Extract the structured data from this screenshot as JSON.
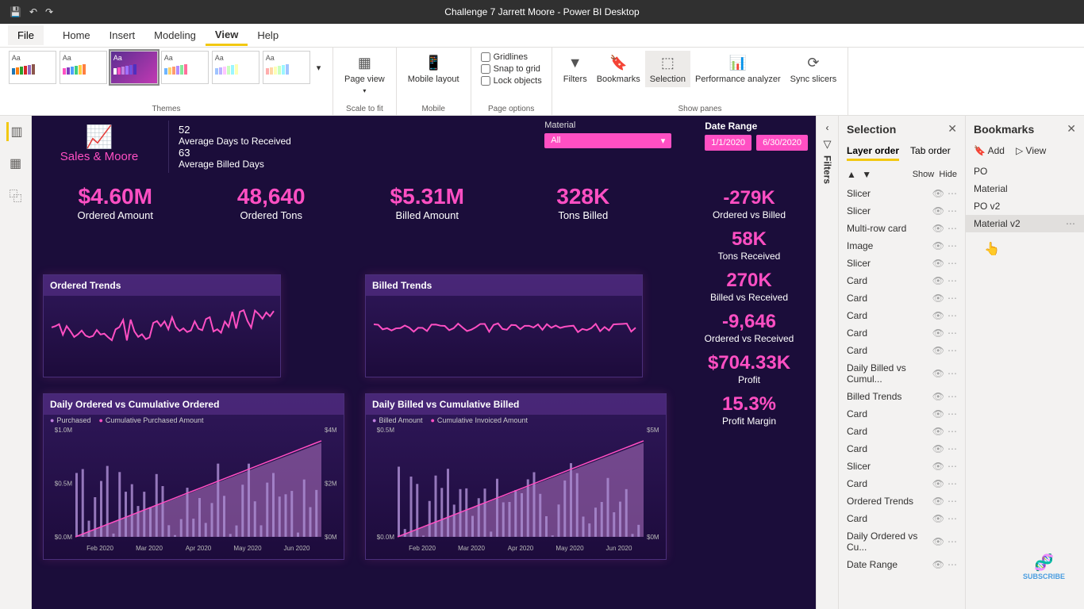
{
  "app": {
    "title": "Challenge 7 Jarrett Moore - Power BI Desktop"
  },
  "menu": {
    "file": "File",
    "tabs": [
      "Home",
      "Insert",
      "Modeling",
      "View",
      "Help"
    ],
    "active": "View"
  },
  "ribbon": {
    "themes_label": "Themes",
    "scale_label": "Scale to fit",
    "mobile_label": "Mobile",
    "page_options_label": "Page options",
    "show_panes_label": "Show panes",
    "page_view": "Page view",
    "mobile_layout": "Mobile layout",
    "gridlines": "Gridlines",
    "snap": "Snap to grid",
    "lock": "Lock objects",
    "filters": "Filters",
    "bookmarks": "Bookmarks",
    "selection": "Selection",
    "perf": "Performance analyzer",
    "sync": "Sync slicers",
    "theme_bar_colors": [
      [
        "#1f77b4",
        "#ff7f0e",
        "#2ca02c",
        "#d62728",
        "#9467bd",
        "#8c564b"
      ],
      [
        "#ff4fc3",
        "#7f3fbf",
        "#4f9fff",
        "#3fcf7f",
        "#ffcf3f",
        "#ff7f3f"
      ],
      [
        "#ffffff",
        "#ff4fc3",
        "#c080e0",
        "#9f6fff",
        "#6f4fdf",
        "#4f2fbf"
      ],
      [
        "#6eb5ff",
        "#ffd36e",
        "#ff9b6e",
        "#b28dff",
        "#85e89d",
        "#ff6e9b"
      ],
      [
        "#a0c4ff",
        "#bdb2ff",
        "#ffc6ff",
        "#caffbf",
        "#9bf6ff",
        "#fdffb6"
      ],
      [
        "#ffadad",
        "#ffd6a5",
        "#fdffb6",
        "#caffbf",
        "#9bf6ff",
        "#a0c4ff"
      ]
    ]
  },
  "filters_pane": {
    "label": "Filters"
  },
  "selection_pane": {
    "title": "Selection",
    "layer_order": "Layer order",
    "tab_order": "Tab order",
    "show": "Show",
    "hide": "Hide",
    "items": [
      "Slicer",
      "Slicer",
      "Multi-row card",
      "Image",
      "Slicer",
      "Card",
      "Card",
      "Card",
      "Card",
      "Card",
      "Daily Billed vs Cumul...",
      "Billed Trends",
      "Card",
      "Card",
      "Card",
      "Slicer",
      "Card",
      "Ordered Trends",
      "Card",
      "Daily Ordered vs Cu...",
      "Date Range"
    ]
  },
  "bookmarks_pane": {
    "title": "Bookmarks",
    "add": "Add",
    "view": "View",
    "items": [
      "PO",
      "Material",
      "PO v2",
      "Material v2"
    ],
    "hover_index": 3
  },
  "dashboard": {
    "brand": "Sales & Moore",
    "stat1_value": "52",
    "stat1_label": "Average Days to Received",
    "stat2_value": "63",
    "stat2_label": "Average Billed Days",
    "material_label": "Material",
    "material_value": "All",
    "date_label": "Date Range",
    "date_from": "1/1/2020",
    "date_to": "6/30/2020",
    "kpis_row": [
      {
        "v": "$4.60M",
        "l": "Ordered Amount"
      },
      {
        "v": "48,640",
        "l": "Ordered Tons"
      },
      {
        "v": "$5.31M",
        "l": "Billed Amount"
      },
      {
        "v": "328K",
        "l": "Tons Billed"
      }
    ],
    "kpis_right": [
      {
        "v": "-279K",
        "l": "Ordered vs Billed"
      },
      {
        "v": "58K",
        "l": "Tons Received"
      },
      {
        "v": "270K",
        "l": "Billed vs Received"
      },
      {
        "v": "-9,646",
        "l": "Ordered vs Received"
      },
      {
        "v": "$704.33K",
        "l": "Profit"
      },
      {
        "v": "15.3%",
        "l": "Profit Margin"
      }
    ],
    "charts": {
      "ordered_trends": {
        "title": "Ordered Trends",
        "line_color": "#ff4fc3"
      },
      "billed_trends": {
        "title": "Billed Trends",
        "line_color": "#ff4fc3"
      },
      "daily_ordered": {
        "title": "Daily Ordered vs Cumulative Ordered",
        "legend": [
          "Purchased",
          "Cumulative Purchased Amount"
        ],
        "y_left": [
          "$1.0M",
          "$0.5M",
          "$0.0M"
        ],
        "y_right": [
          "$4M",
          "$2M",
          "$0M"
        ],
        "x": [
          "Feb 2020",
          "Mar 2020",
          "Apr 2020",
          "May 2020",
          "Jun 2020"
        ],
        "bar_color": "#a98bd0",
        "area_color": "#a56bb8",
        "line_color": "#ff4fc3"
      },
      "daily_billed": {
        "title": "Daily Billed vs Cumulative Billed",
        "legend": [
          "Billed Amount",
          "Cumulative Invoiced Amount"
        ],
        "y_left": [
          "$0.5M",
          "$0.0M"
        ],
        "y_right": [
          "$5M",
          "$0M"
        ],
        "x": [
          "Feb 2020",
          "Mar 2020",
          "Apr 2020",
          "May 2020",
          "Jun 2020"
        ],
        "bar_color": "#a98bd0",
        "area_color": "#a56bb8",
        "line_color": "#ff4fc3"
      }
    }
  },
  "subscribe": "SUBSCRIBE"
}
